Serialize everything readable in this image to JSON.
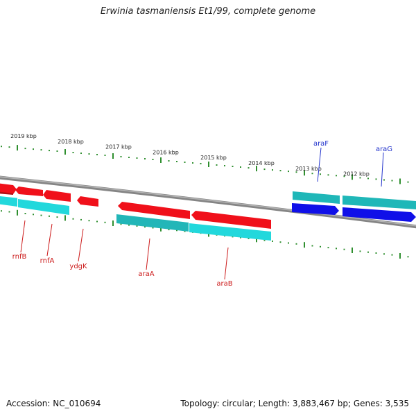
{
  "title": "Erwinia tasmaniensis Et1/99, complete genome",
  "footer": {
    "accession": "Accession: NC_010694",
    "summary": "Topology: circular; Length: 3,883,467 bp; Genes: 3,535"
  },
  "colors": {
    "forward": "#f0101a",
    "reverse": "#22d8dc",
    "teal": "#1fb7b8",
    "blue": "#1010e8",
    "backbone": "#858585",
    "ticks": "#2f8f2f",
    "label_red": "#cc1b1b",
    "label_blue": "#2233cc"
  },
  "ticks": [
    {
      "label": "2019 kbp"
    },
    {
      "label": "2018 kbp"
    },
    {
      "label": "2017 kbp"
    },
    {
      "label": "2016 kbp"
    },
    {
      "label": "2015 kbp"
    },
    {
      "label": "2014 kbp"
    },
    {
      "label": "2013 kbp"
    },
    {
      "label": "2012 kbp"
    }
  ],
  "gene_labels": [
    {
      "name": "rnfB",
      "color": "label_red"
    },
    {
      "name": "rnfA",
      "color": "label_red"
    },
    {
      "name": "ydgK",
      "color": "label_red"
    },
    {
      "name": "araA",
      "color": "label_red"
    },
    {
      "name": "araB",
      "color": "label_red"
    },
    {
      "name": "araF",
      "color": "label_blue"
    },
    {
      "name": "araG",
      "color": "label_blue"
    }
  ]
}
